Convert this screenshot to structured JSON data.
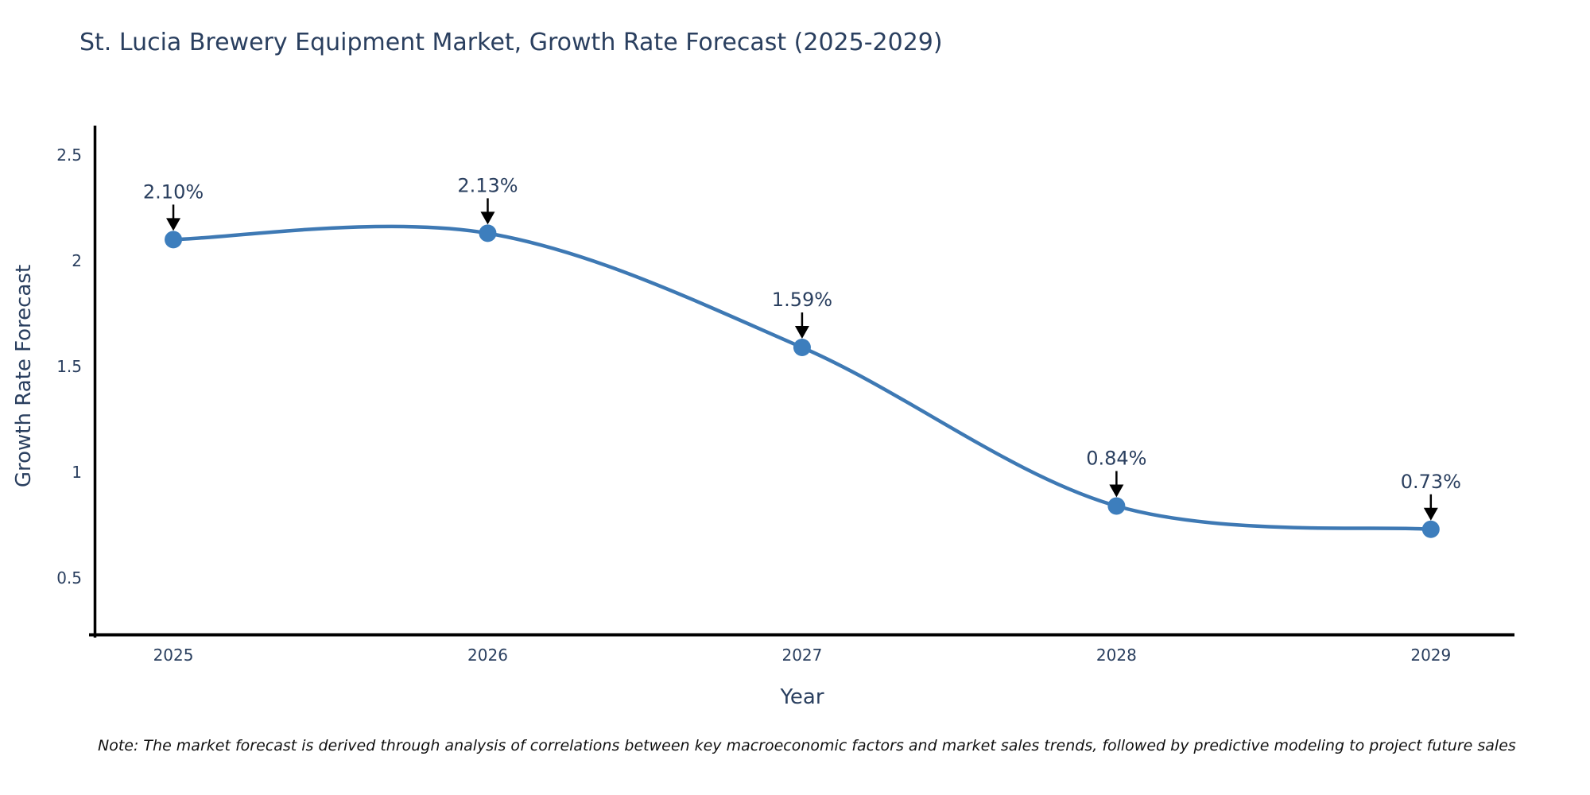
{
  "chart_data": {
    "type": "line",
    "title": "St. Lucia Brewery Equipment Market, Growth Rate Forecast (2025-2029)",
    "xlabel": "Year",
    "ylabel": "Growth Rate Forecast",
    "x": [
      2025,
      2026,
      2027,
      2028,
      2029
    ],
    "values": [
      2.1,
      2.13,
      1.59,
      0.84,
      0.73
    ],
    "point_labels": [
      "2.10%",
      "2.13%",
      "1.59%",
      "0.84%",
      "0.73%"
    ],
    "xtick_labels": [
      "2025",
      "2026",
      "2027",
      "2028",
      "2029"
    ],
    "yticks": [
      0.5,
      1.0,
      1.5,
      2.0,
      2.5
    ],
    "ytick_labels": [
      "0.5",
      "1",
      "1.5",
      "2",
      "2.5"
    ],
    "xlim": [
      2024.747,
      2029.266
    ],
    "ylim": [
      0.231,
      2.639
    ],
    "grid": false,
    "legend": false,
    "line_shape": "spline",
    "colors": {
      "line": "#3e79b4",
      "marker": "#3d7ebd",
      "axis": "#000000",
      "text": "#2a3f5f",
      "annotation": "#2a3f5f",
      "note_text": "#111111",
      "arrow": "#000000",
      "background": "#ffffff"
    },
    "note": "Note: The market forecast is derived through analysis of correlations between key macroeconomic factors and market sales trends, followed by predictive modeling to project future sales"
  }
}
